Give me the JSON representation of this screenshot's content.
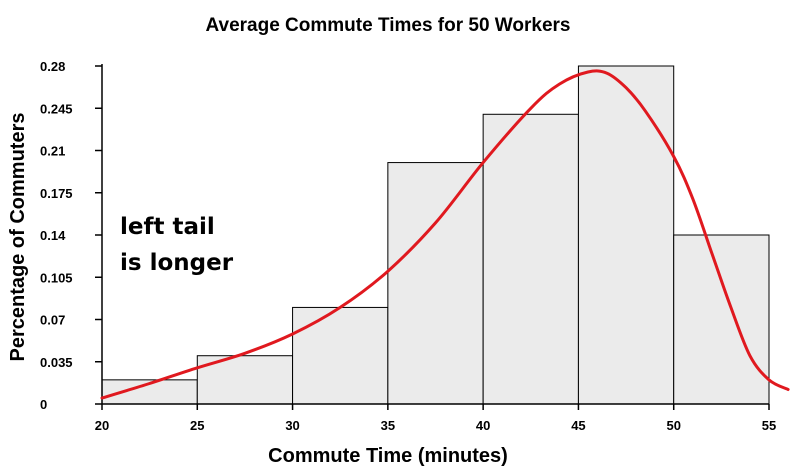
{
  "chart_data": {
    "type": "bar",
    "title": "Average Commute Times for 50 Workers",
    "xlabel": "Commute Time (minutes)",
    "ylabel": "Percentage of Commuters",
    "bins": [
      {
        "start": 20,
        "end": 25,
        "value": 0.02
      },
      {
        "start": 25,
        "end": 30,
        "value": 0.04
      },
      {
        "start": 30,
        "end": 35,
        "value": 0.08
      },
      {
        "start": 35,
        "end": 40,
        "value": 0.2
      },
      {
        "start": 40,
        "end": 45,
        "value": 0.24
      },
      {
        "start": 45,
        "end": 50,
        "value": 0.28
      },
      {
        "start": 50,
        "end": 55,
        "value": 0.14
      }
    ],
    "x_ticks": [
      "20",
      "25",
      "30",
      "35",
      "40",
      "45",
      "50",
      "55"
    ],
    "y_ticks": [
      "0",
      "0.035",
      "0.07",
      "0.105",
      "0.14",
      "0.175",
      "0.21",
      "0.245",
      "0.28"
    ],
    "xlim": [
      20,
      55
    ],
    "ylim": [
      0,
      0.28
    ],
    "grid": false,
    "annotation": {
      "lines": [
        "left tail",
        "is longer"
      ]
    },
    "trend_curve": {
      "color": "#e0191f",
      "points": [
        [
          20,
          0.005
        ],
        [
          22.5,
          0.017
        ],
        [
          25,
          0.03
        ],
        [
          27.5,
          0.042
        ],
        [
          30,
          0.058
        ],
        [
          32.5,
          0.08
        ],
        [
          35,
          0.11
        ],
        [
          37.5,
          0.15
        ],
        [
          40,
          0.2
        ],
        [
          42.5,
          0.245
        ],
        [
          44,
          0.265
        ],
        [
          45.5,
          0.275
        ],
        [
          46.5,
          0.274
        ],
        [
          47.5,
          0.262
        ],
        [
          48.5,
          0.243
        ],
        [
          50,
          0.205
        ],
        [
          51,
          0.17
        ],
        [
          52,
          0.125
        ],
        [
          53,
          0.08
        ],
        [
          54,
          0.04
        ],
        [
          55,
          0.02
        ],
        [
          56,
          0.012
        ]
      ]
    }
  }
}
